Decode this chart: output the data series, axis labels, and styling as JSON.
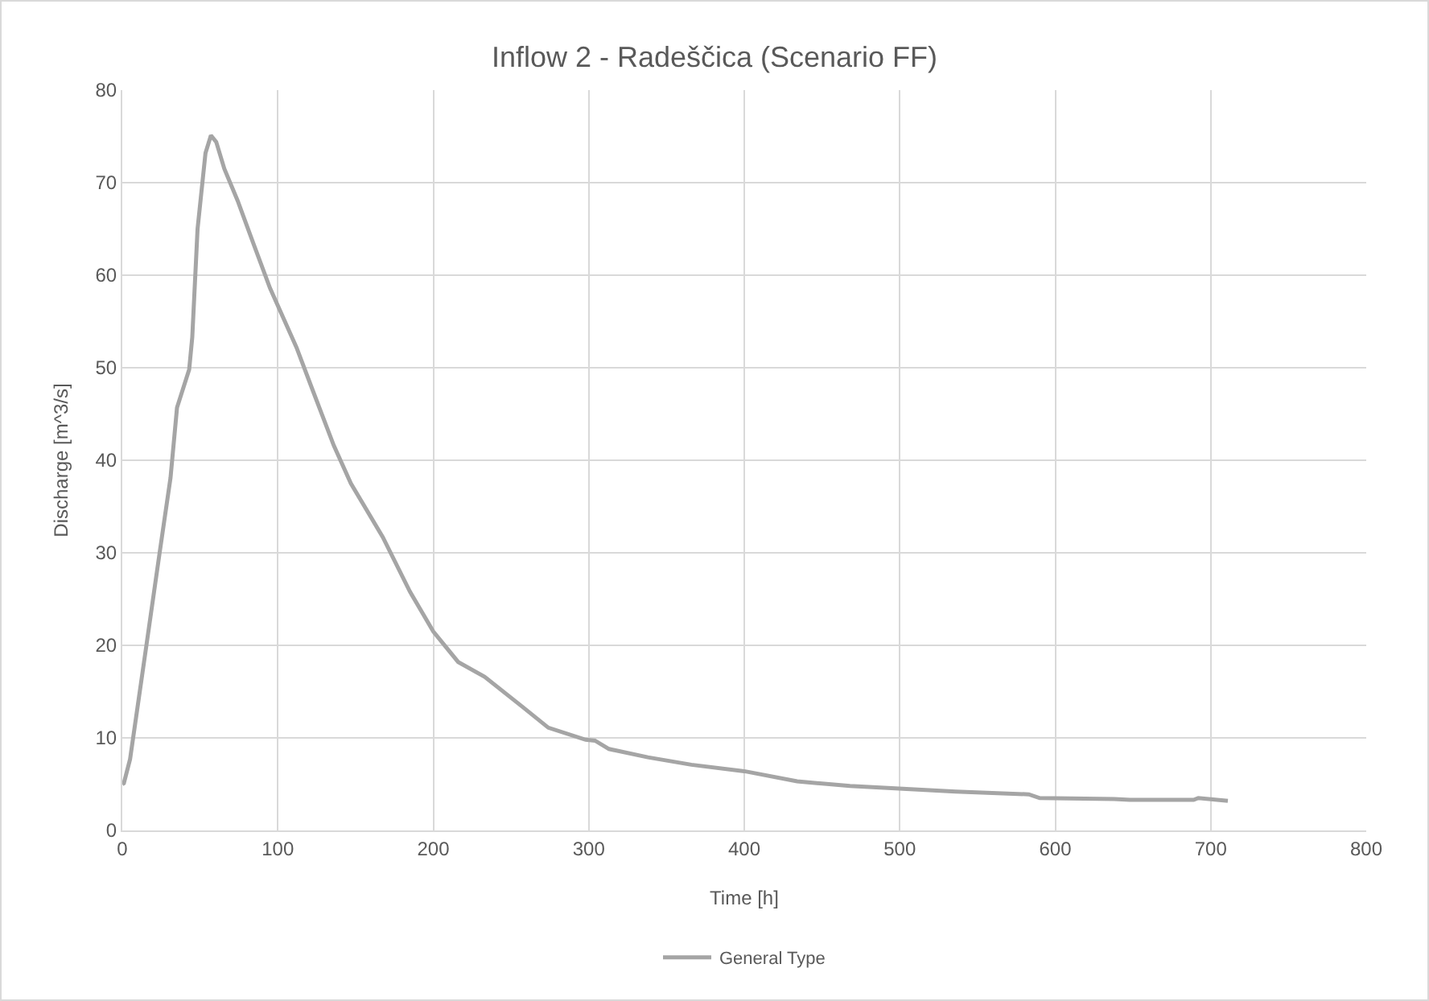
{
  "chart_data": {
    "type": "line",
    "title": "Inflow 2 - Radeščica (Scenario FF)",
    "xlabel": "Time [h]",
    "ylabel": "Discharge [m^3/s]",
    "x": [
      0,
      1,
      5,
      15.5,
      24,
      31,
      35.2,
      43,
      45,
      48.4,
      53.5,
      57,
      60.4,
      65.6,
      74.3,
      84.6,
      95,
      112,
      122.6,
      136,
      147,
      167.5,
      185,
      200,
      216,
      233,
      257,
      274,
      298,
      304,
      313,
      338,
      366,
      400,
      434,
      468,
      502,
      536,
      583,
      590,
      638,
      648,
      689,
      692,
      711
    ],
    "series": [
      {
        "name": "General Type",
        "color": "#a5a5a5",
        "values": [
          5,
          5.1,
          7.7,
          20,
          30,
          38.1,
          45.7,
          49.8,
          53.3,
          65,
          73.2,
          75.1,
          74.4,
          71.5,
          68,
          63.3,
          58.6,
          52.2,
          47.5,
          41.6,
          37.5,
          31.7,
          25.8,
          21.5,
          18.2,
          16.6,
          13.4,
          11.1,
          9.8,
          9.7,
          8.8,
          7.9,
          7.1,
          6.4,
          5.3,
          4.8,
          4.5,
          4.2,
          3.9,
          3.5,
          3.4,
          3.3,
          3.3,
          3.5,
          3.2
        ]
      }
    ],
    "xlim": [
      0,
      800
    ],
    "xticks": [
      0,
      100,
      200,
      300,
      400,
      500,
      600,
      700,
      800
    ],
    "ylim": [
      0,
      80
    ],
    "yticks": [
      0,
      10,
      20,
      30,
      40,
      50,
      60,
      70,
      80
    ],
    "grid": true,
    "legend": "bottom",
    "marker": "none",
    "line_style": "solid"
  }
}
